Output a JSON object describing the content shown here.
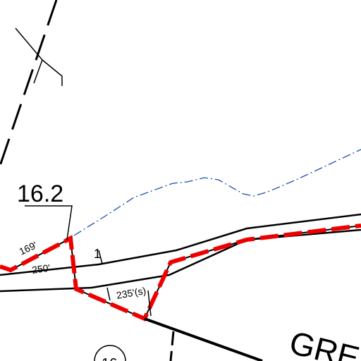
{
  "parcel": {
    "label": "16.2",
    "neighbor_label": "16"
  },
  "dimensions": {
    "side_a": "169'",
    "side_b": "250'",
    "side_c": "235'(s)",
    "marker": "1"
  },
  "street": {
    "name": "GRE"
  }
}
